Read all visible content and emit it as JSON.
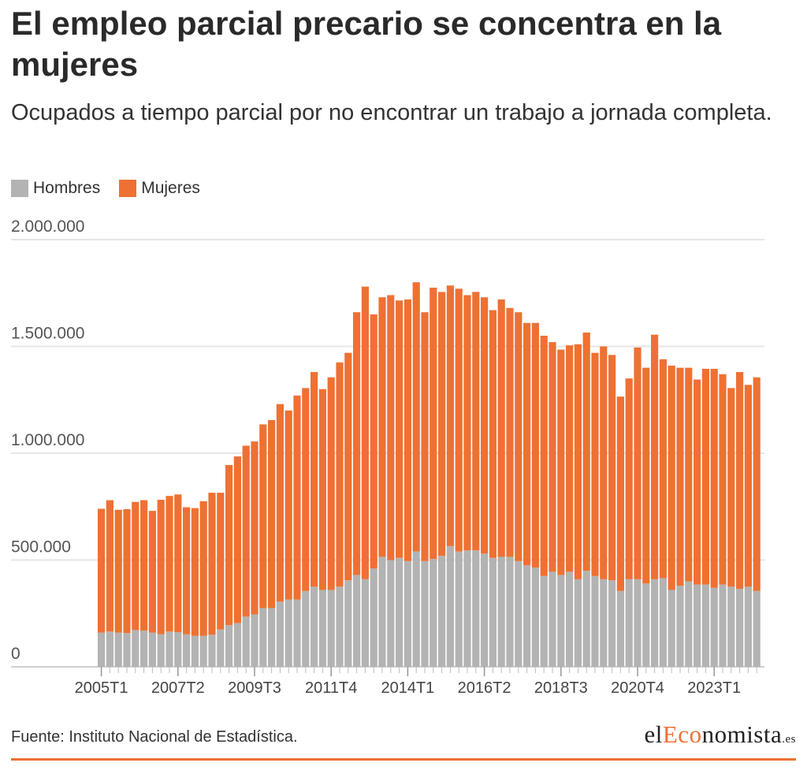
{
  "header": {
    "title": "El empleo parcial precario se concentra en la mujeres",
    "subtitle": "Ocupados a tiempo parcial por no encontrar un trabajo a jornada completa."
  },
  "legend": {
    "items": [
      {
        "label": "Hombres",
        "color": "#b3b3b3"
      },
      {
        "label": "Mujeres",
        "color": "#ee7133"
      }
    ]
  },
  "footer": {
    "source": "Fuente: Instituto Nacional de Estadística.",
    "logo_prefix": "el",
    "logo_accent": "Eco",
    "logo_rest": "nomista",
    "logo_suffix": ".es"
  },
  "colors": {
    "hombres": "#b3b3b3",
    "mujeres": "#ee7133",
    "grid": "#e6e6e6"
  },
  "chart_data": {
    "type": "bar",
    "stacked": true,
    "first_period": "2005T1",
    "tick_labels": [
      "2005T1",
      "2007T2",
      "2009T3",
      "2011T4",
      "2014T1",
      "2016T2",
      "2018T3",
      "2020T4",
      "2023T1"
    ],
    "y_ticks": [
      {
        "value": 0,
        "label": "0"
      },
      {
        "value": 500000,
        "label": "500.000"
      },
      {
        "value": 1000000,
        "label": "1.000.000"
      },
      {
        "value": 1500000,
        "label": "1.500.000"
      },
      {
        "value": 2000000,
        "label": "2.000.000"
      }
    ],
    "ylim": [
      0,
      2000000
    ],
    "grid": true,
    "legend_position": "top-left",
    "series": [
      {
        "name": "Hombres",
        "values": [
          160000,
          165000,
          160000,
          158000,
          172000,
          170000,
          160000,
          152000,
          165000,
          162000,
          152000,
          145000,
          145000,
          150000,
          175000,
          195000,
          205000,
          235000,
          245000,
          275000,
          275000,
          305000,
          315000,
          315000,
          355000,
          375000,
          360000,
          360000,
          375000,
          405000,
          430000,
          410000,
          460000,
          515000,
          500000,
          510000,
          495000,
          540000,
          495000,
          505000,
          520000,
          565000,
          540000,
          545000,
          545000,
          530000,
          510000,
          515000,
          515000,
          495000,
          475000,
          465000,
          425000,
          445000,
          430000,
          445000,
          410000,
          450000,
          425000,
          410000,
          405000,
          355000,
          410000,
          410000,
          390000,
          410000,
          415000,
          360000,
          380000,
          400000,
          385000,
          385000,
          370000,
          385000,
          375000,
          365000,
          375000,
          355000
        ]
      },
      {
        "name": "Mujeres",
        "values": [
          580000,
          615000,
          575000,
          580000,
          600000,
          610000,
          570000,
          630000,
          635000,
          645000,
          595000,
          598000,
          630000,
          665000,
          640000,
          750000,
          780000,
          800000,
          810000,
          860000,
          880000,
          925000,
          885000,
          955000,
          950000,
          1005000,
          940000,
          995000,
          1050000,
          1065000,
          1230000,
          1370000,
          1190000,
          1215000,
          1240000,
          1205000,
          1225000,
          1260000,
          1165000,
          1270000,
          1235000,
          1220000,
          1230000,
          1195000,
          1210000,
          1200000,
          1160000,
          1205000,
          1165000,
          1165000,
          1135000,
          1145000,
          1125000,
          1075000,
          1055000,
          1060000,
          1100000,
          1115000,
          1045000,
          1090000,
          1055000,
          910000,
          940000,
          1085000,
          1010000,
          1145000,
          1025000,
          1050000,
          1020000,
          1000000,
          960000,
          1010000,
          1025000,
          985000,
          930000,
          1015000,
          945000,
          1000000
        ]
      }
    ]
  }
}
